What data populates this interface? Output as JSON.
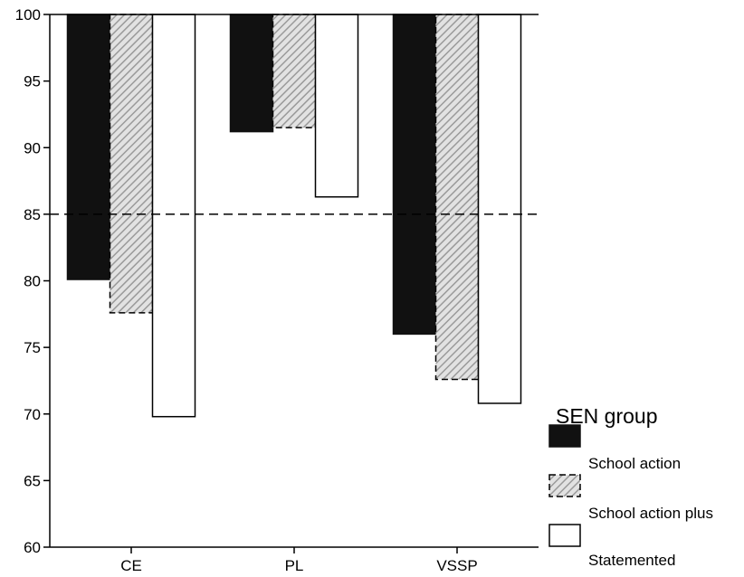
{
  "chart_data": {
    "type": "bar",
    "title": "",
    "xlabel": "",
    "ylabel": "",
    "ylim": [
      60,
      100
    ],
    "yticks": [
      60,
      65,
      70,
      75,
      80,
      85,
      90,
      95,
      100
    ],
    "bars_hang_from_top": true,
    "reference_line": {
      "value": 85,
      "style": "dashed"
    },
    "grid": false,
    "categories": [
      "CE",
      "PL",
      "VSSP"
    ],
    "series": [
      {
        "name": "School action",
        "values": [
          80.1,
          91.2,
          76.0
        ],
        "fill": "#111111",
        "pattern": "solid"
      },
      {
        "name": "School action plus",
        "values": [
          77.6,
          91.5,
          72.6
        ],
        "fill": "#cfcfcf",
        "pattern": "hatch-diagonal"
      },
      {
        "name": "Statemented",
        "values": [
          69.8,
          86.3,
          70.8
        ],
        "fill": "#ffffff",
        "pattern": "none"
      }
    ],
    "legend": {
      "title": "SEN group",
      "placement": "bottom-right"
    }
  }
}
